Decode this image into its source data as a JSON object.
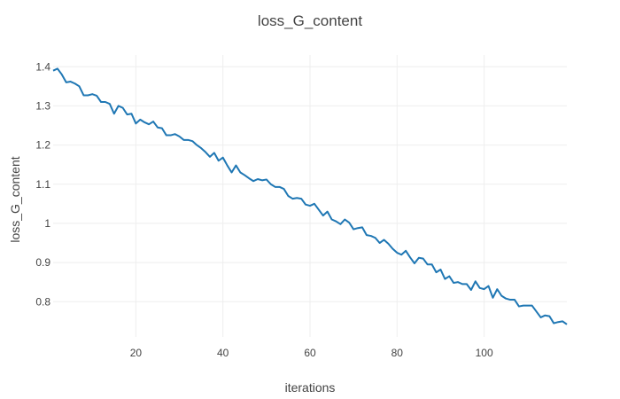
{
  "chart_data": {
    "type": "line",
    "title": "loss_G_content",
    "xlabel": "iterations",
    "ylabel": "loss_G_content",
    "xlim": [
      1,
      119
    ],
    "ylim": [
      0.71,
      1.43
    ],
    "xticks": [
      20,
      40,
      60,
      80,
      100
    ],
    "xtick_labels": [
      "20",
      "40",
      "60",
      "80",
      "100"
    ],
    "yticks": [
      0.8,
      0.9,
      1.0,
      1.1,
      1.2,
      1.3,
      1.4
    ],
    "ytick_labels": [
      "0.8",
      "0.9",
      "1",
      "1.1",
      "1.2",
      "1.3",
      "1.4"
    ],
    "grid": true,
    "color": "#1f77b4",
    "series": [
      {
        "x": [
          1,
          2,
          3,
          4,
          5,
          6,
          7,
          8,
          9,
          10,
          11,
          12,
          13,
          14,
          15,
          16,
          17,
          18,
          19,
          20,
          21,
          22,
          23,
          24,
          25,
          26,
          27,
          28,
          29,
          30,
          31,
          32,
          33,
          34,
          35,
          36,
          37,
          38,
          39,
          40,
          41,
          42,
          43,
          44,
          45,
          46,
          47,
          48,
          49,
          50,
          51,
          52,
          53,
          54,
          55,
          56,
          57,
          58,
          59,
          60,
          61,
          62,
          63,
          64,
          65,
          66,
          67,
          68,
          69,
          70,
          71,
          72,
          73,
          74,
          75,
          76,
          77,
          78,
          79,
          80,
          81,
          82,
          83,
          84,
          85,
          86,
          87,
          88,
          89,
          90,
          91,
          92,
          93,
          94,
          95,
          96,
          97,
          98,
          99,
          100,
          101,
          102,
          103,
          104,
          105,
          106,
          107,
          108,
          109,
          110,
          111,
          112,
          113,
          114,
          115,
          116,
          117,
          118,
          119
        ],
        "y": [
          1.39,
          1.395,
          1.38,
          1.36,
          1.362,
          1.357,
          1.35,
          1.327,
          1.327,
          1.33,
          1.326,
          1.31,
          1.31,
          1.305,
          1.28,
          1.3,
          1.295,
          1.278,
          1.28,
          1.255,
          1.265,
          1.258,
          1.253,
          1.26,
          1.245,
          1.243,
          1.225,
          1.225,
          1.228,
          1.222,
          1.213,
          1.213,
          1.21,
          1.2,
          1.192,
          1.182,
          1.17,
          1.18,
          1.16,
          1.168,
          1.148,
          1.13,
          1.148,
          1.13,
          1.123,
          1.115,
          1.108,
          1.113,
          1.11,
          1.112,
          1.1,
          1.093,
          1.093,
          1.088,
          1.07,
          1.063,
          1.065,
          1.063,
          1.048,
          1.045,
          1.05,
          1.035,
          1.02,
          1.03,
          1.01,
          1.005,
          0.998,
          1.01,
          1.002,
          0.985,
          0.988,
          0.99,
          0.97,
          0.968,
          0.963,
          0.95,
          0.958,
          0.948,
          0.935,
          0.925,
          0.92,
          0.93,
          0.913,
          0.898,
          0.912,
          0.91,
          0.895,
          0.895,
          0.875,
          0.882,
          0.858,
          0.865,
          0.848,
          0.85,
          0.845,
          0.845,
          0.83,
          0.852,
          0.835,
          0.832,
          0.84,
          0.81,
          0.832,
          0.815,
          0.808,
          0.805,
          0.805,
          0.788,
          0.79,
          0.79,
          0.79,
          0.775,
          0.76,
          0.765,
          0.763,
          0.745,
          0.748,
          0.75,
          0.742
        ]
      }
    ]
  }
}
